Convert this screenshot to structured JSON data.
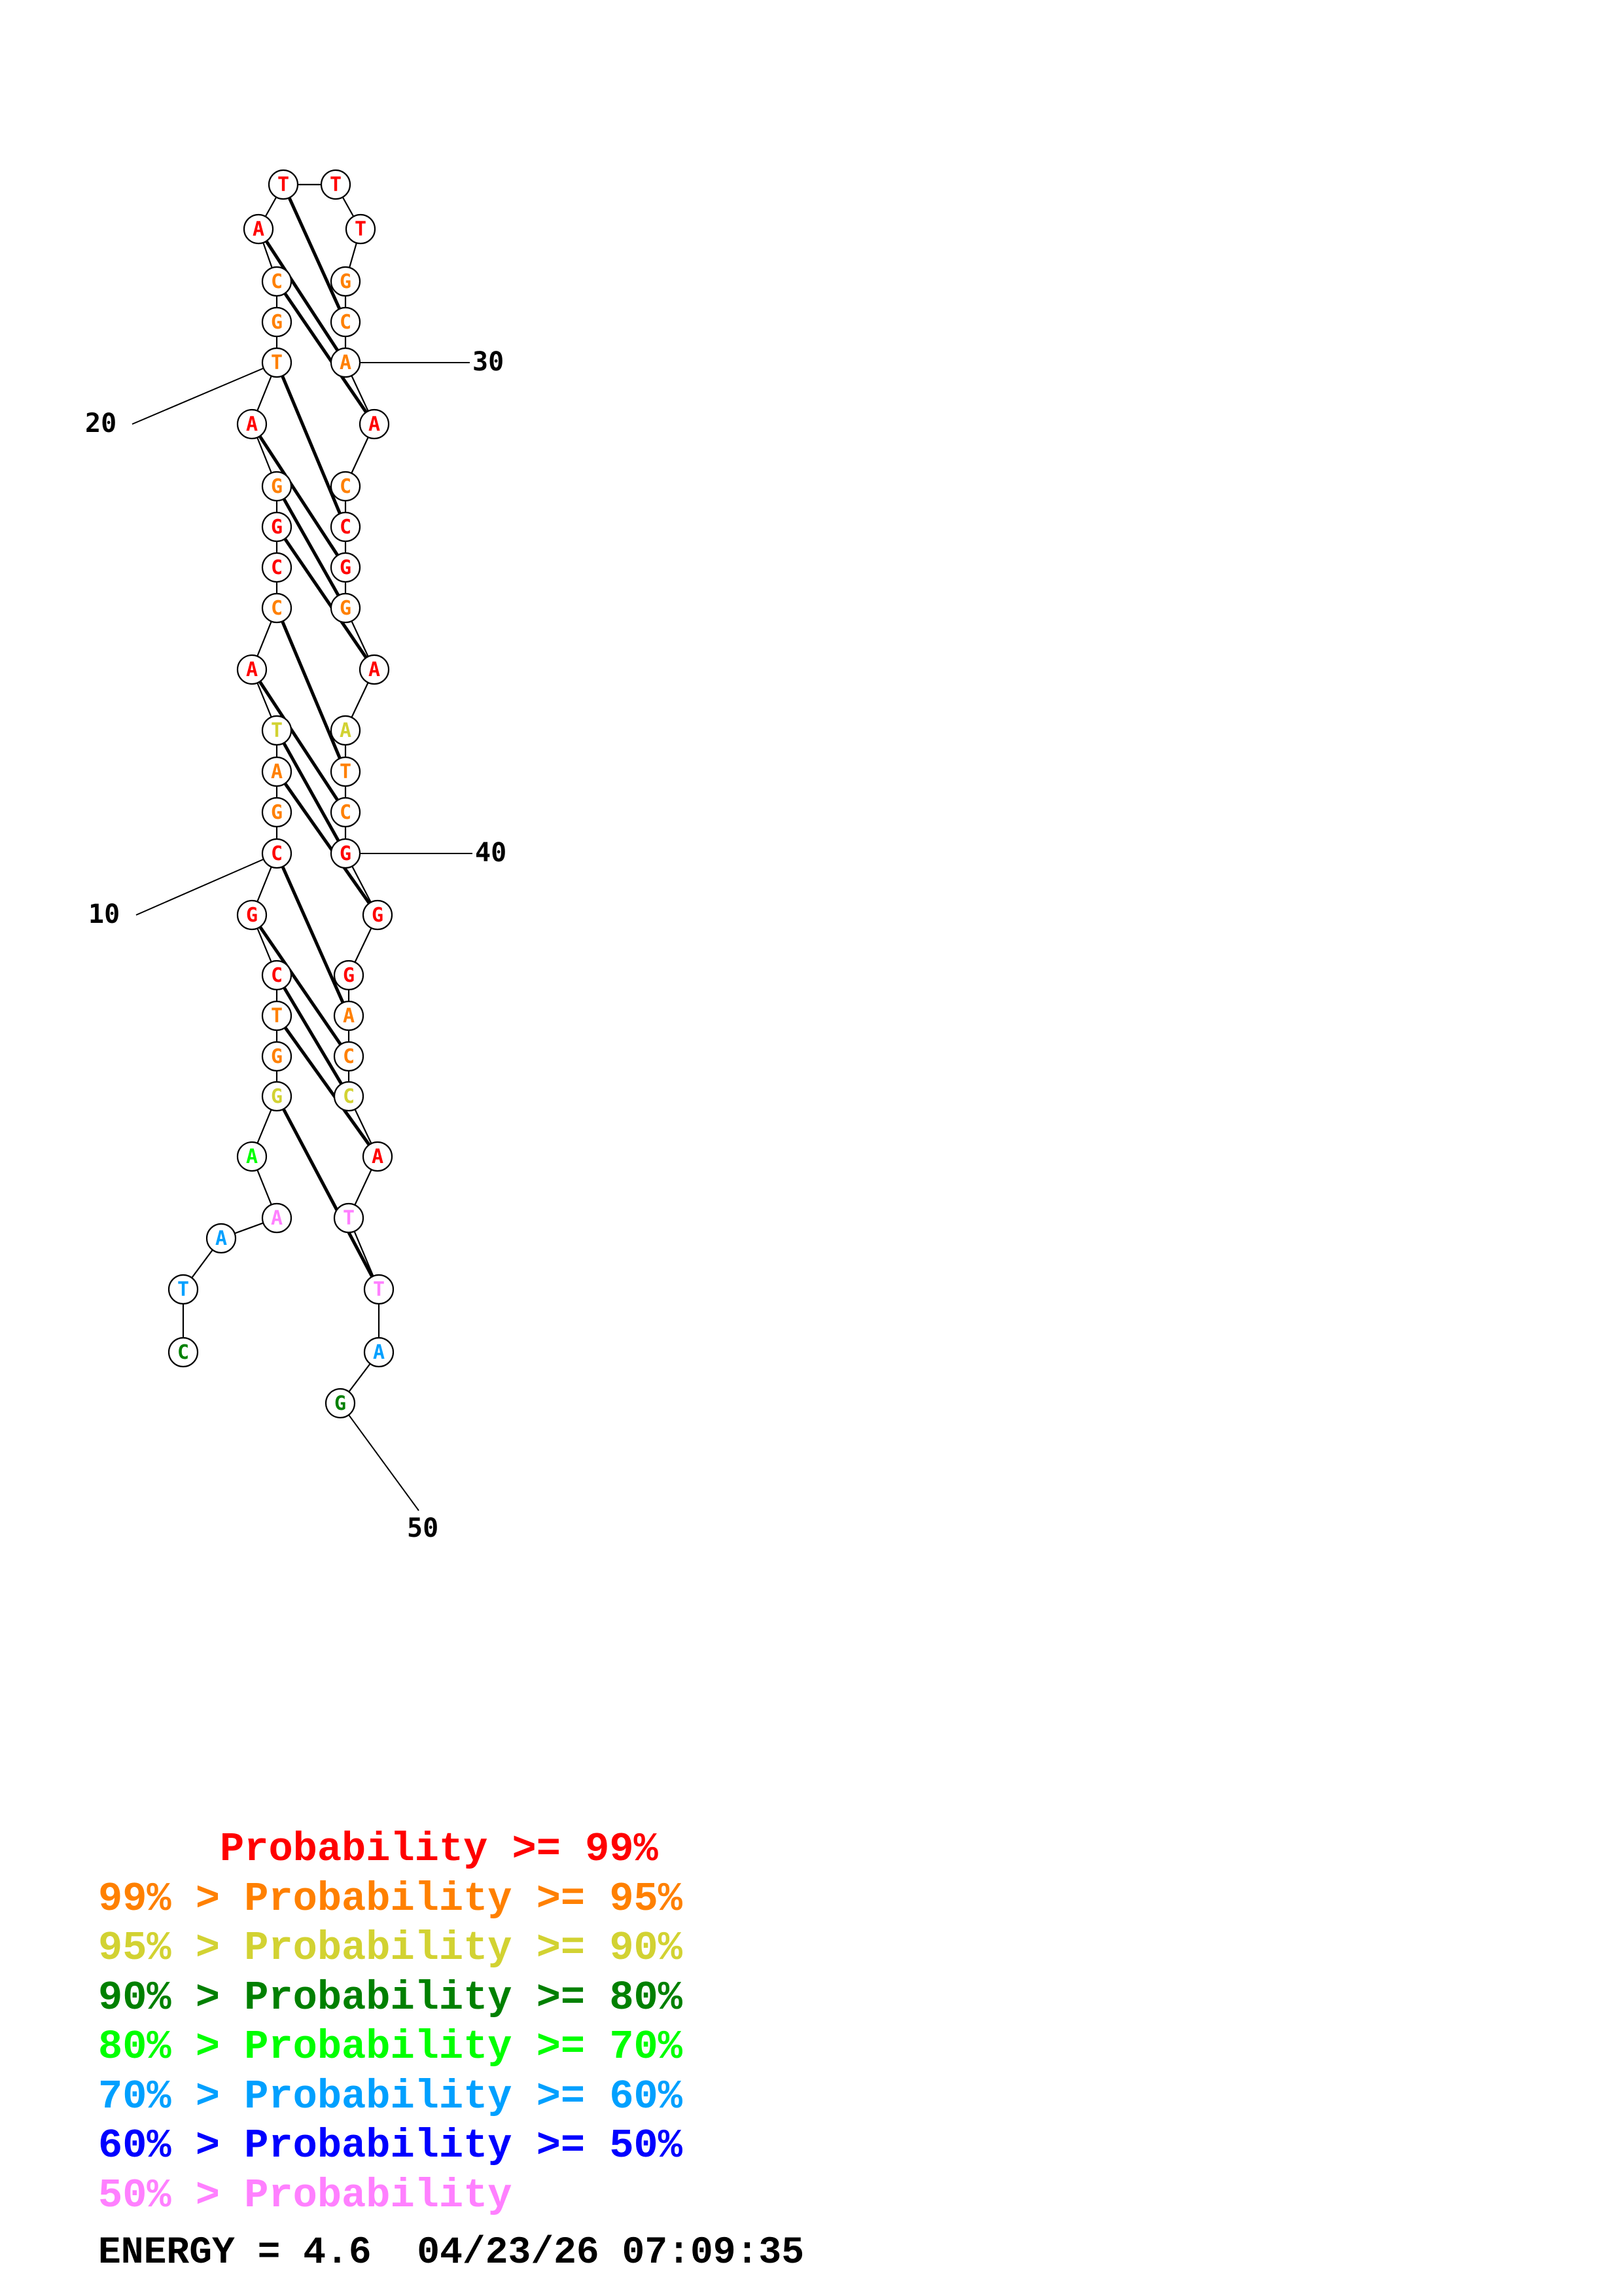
{
  "structure": {
    "nucleotides": [
      {
        "letter": "C",
        "tier": 3
      },
      {
        "letter": "T",
        "tier": 5
      },
      {
        "letter": "A",
        "tier": 5
      },
      {
        "letter": "A",
        "tier": 7
      },
      {
        "letter": "A",
        "tier": 4
      },
      {
        "letter": "G",
        "tier": 2
      },
      {
        "letter": "G",
        "tier": 1
      },
      {
        "letter": "T",
        "tier": 1
      },
      {
        "letter": "C",
        "tier": 0
      },
      {
        "letter": "G",
        "tier": 0
      },
      {
        "letter": "C",
        "tier": 0
      },
      {
        "letter": "G",
        "tier": 1
      },
      {
        "letter": "A",
        "tier": 1
      },
      {
        "letter": "T",
        "tier": 2
      },
      {
        "letter": "A",
        "tier": 0
      },
      {
        "letter": "C",
        "tier": 1
      },
      {
        "letter": "C",
        "tier": 0
      },
      {
        "letter": "G",
        "tier": 0
      },
      {
        "letter": "G",
        "tier": 1
      },
      {
        "letter": "A",
        "tier": 0
      },
      {
        "letter": "T",
        "tier": 1
      },
      {
        "letter": "G",
        "tier": 1
      },
      {
        "letter": "C",
        "tier": 1
      },
      {
        "letter": "A",
        "tier": 0
      },
      {
        "letter": "T",
        "tier": 0
      },
      {
        "letter": "T",
        "tier": 0
      },
      {
        "letter": "T",
        "tier": 0
      },
      {
        "letter": "G",
        "tier": 1
      },
      {
        "letter": "C",
        "tier": 1
      },
      {
        "letter": "A",
        "tier": 1
      },
      {
        "letter": "A",
        "tier": 0
      },
      {
        "letter": "C",
        "tier": 1
      },
      {
        "letter": "C",
        "tier": 0
      },
      {
        "letter": "G",
        "tier": 0
      },
      {
        "letter": "G",
        "tier": 1
      },
      {
        "letter": "A",
        "tier": 0
      },
      {
        "letter": "A",
        "tier": 2
      },
      {
        "letter": "T",
        "tier": 1
      },
      {
        "letter": "C",
        "tier": 1
      },
      {
        "letter": "G",
        "tier": 0
      },
      {
        "letter": "G",
        "tier": 0
      },
      {
        "letter": "G",
        "tier": 0
      },
      {
        "letter": "A",
        "tier": 1
      },
      {
        "letter": "C",
        "tier": 1
      },
      {
        "letter": "C",
        "tier": 2
      },
      {
        "letter": "A",
        "tier": 0
      },
      {
        "letter": "T",
        "tier": 7
      },
      {
        "letter": "T",
        "tier": 7
      },
      {
        "letter": "A",
        "tier": 5
      },
      {
        "letter": "G",
        "tier": 3
      }
    ],
    "pairs": [
      [
        5,
        47
      ],
      [
        7,
        45
      ],
      [
        8,
        44
      ],
      [
        9,
        43
      ],
      [
        10,
        42
      ],
      [
        12,
        40
      ],
      [
        13,
        39
      ],
      [
        14,
        38
      ],
      [
        15,
        37
      ],
      [
        17,
        35
      ],
      [
        18,
        34
      ],
      [
        19,
        33
      ],
      [
        20,
        32
      ],
      [
        22,
        30
      ],
      [
        23,
        29
      ],
      [
        24,
        28
      ]
    ],
    "position_labels": [
      {
        "text": "10",
        "position": 11
      },
      {
        "text": "20",
        "position": 21
      },
      {
        "text": "30",
        "position": 30
      },
      {
        "text": "40",
        "position": 40
      },
      {
        "text": "50",
        "position": 50
      }
    ]
  },
  "tier_colors": [
    "#ff0000",
    "#ff8000",
    "#d2d232",
    "#008000",
    "#00ff00",
    "#00a0ff",
    "#0000ff",
    "#ff80ff"
  ],
  "legend": [
    {
      "text": "     Probability >= 99%",
      "color": "#ff0000"
    },
    {
      "text": "99% > Probability >= 95%",
      "color": "#ff8000"
    },
    {
      "text": "95% > Probability >= 90%",
      "color": "#d2d232"
    },
    {
      "text": "90% > Probability >= 80%",
      "color": "#008000"
    },
    {
      "text": "80% > Probability >= 70%",
      "color": "#00ff00"
    },
    {
      "text": "70% > Probability >= 60%",
      "color": "#00a0ff"
    },
    {
      "text": "60% > Probability >= 50%",
      "color": "#0000ff"
    },
    {
      "text": "50% > Probability",
      "color": "#ff80ff"
    }
  ],
  "footer": {
    "energy": "ENERGY = 4.6",
    "timestamp": "04/23/26 07:09:35"
  }
}
